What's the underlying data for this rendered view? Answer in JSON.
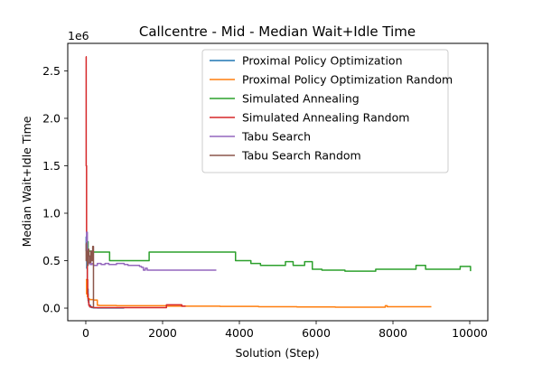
{
  "chart_data": {
    "type": "line",
    "title": "Callcentre - Mid - Median Wait+Idle Time",
    "xlabel": "Solution (Step)",
    "ylabel": "Median Wait+Idle Time",
    "y_offset_text": "1e6",
    "xlim": [
      -470,
      10470
    ],
    "ylim": [
      -133000,
      2790000
    ],
    "x_ticks": [
      0,
      2000,
      4000,
      6000,
      8000,
      10000
    ],
    "x_tick_labels": [
      "0",
      "2000",
      "4000",
      "6000",
      "8000",
      "10000"
    ],
    "y_ticks": [
      0,
      500000,
      1000000,
      1500000,
      2000000,
      2500000
    ],
    "y_tick_labels": [
      "0.0",
      "0.5",
      "1.0",
      "1.5",
      "2.0",
      "2.5"
    ],
    "grid": false,
    "legend_position": "top-right",
    "series": [
      {
        "name": "Proximal Policy Optimization",
        "color": "#1f77b4",
        "x": [
          0,
          10,
          25,
          40,
          60,
          80,
          120,
          160,
          200,
          300,
          500,
          800,
          1000
        ],
        "y": [
          600000,
          750000,
          420000,
          200000,
          80000,
          30000,
          10000,
          5000,
          3000,
          2000,
          1500,
          1000,
          1000
        ]
      },
      {
        "name": "Proximal Policy Optimization Random",
        "color": "#ff7f0e",
        "x": [
          0,
          20,
          40,
          60,
          80,
          100,
          150,
          200,
          250,
          300,
          350,
          800,
          1300,
          2100,
          2500,
          3500,
          4500,
          5500,
          6500,
          7800,
          7850,
          8200,
          9000
        ],
        "y": [
          300000,
          150000,
          120000,
          100000,
          95000,
          90000,
          90000,
          85000,
          85000,
          30000,
          28000,
          25000,
          25000,
          20000,
          20000,
          18000,
          15000,
          12000,
          10000,
          25000,
          15000,
          15000,
          15000
        ]
      },
      {
        "name": "Simulated Annealing",
        "color": "#2ca02c",
        "x": [
          0,
          60,
          100,
          150,
          600,
          620,
          1600,
          1650,
          3850,
          3900,
          4250,
          4300,
          4500,
          4550,
          5150,
          5200,
          5350,
          5400,
          5650,
          5700,
          5850,
          5900,
          6100,
          6150,
          6700,
          6750,
          7500,
          7550,
          8550,
          8600,
          8800,
          8850,
          9700,
          9750,
          10000,
          10020
        ],
        "y": [
          700000,
          600000,
          600000,
          590000,
          590000,
          500000,
          500000,
          590000,
          590000,
          500000,
          500000,
          470000,
          470000,
          450000,
          450000,
          490000,
          490000,
          450000,
          450000,
          490000,
          490000,
          410000,
          410000,
          400000,
          400000,
          390000,
          390000,
          410000,
          410000,
          450000,
          450000,
          410000,
          410000,
          440000,
          440000,
          390000
        ]
      },
      {
        "name": "Simulated Annealing Random",
        "color": "#d62728",
        "x": [
          0,
          1,
          10,
          20,
          30,
          40,
          50,
          60,
          70,
          80,
          100,
          150,
          200,
          600,
          1000,
          2000,
          2100,
          2400,
          2500,
          2600
        ],
        "y": [
          2650000,
          2650000,
          1500000,
          800000,
          500000,
          300000,
          150000,
          100000,
          60000,
          30000,
          15000,
          10000,
          5000,
          5000,
          5000,
          5000,
          35000,
          35000,
          20000,
          20000
        ]
      },
      {
        "name": "Tabu Search",
        "color": "#9467bd",
        "x": [
          0,
          20,
          40,
          60,
          80,
          120,
          160,
          200,
          300,
          400,
          500,
          600,
          700,
          800,
          1000,
          1100,
          1300,
          1400,
          1450,
          1500,
          1550,
          1600,
          2000,
          2500,
          3000,
          3400
        ],
        "y": [
          700000,
          800000,
          550000,
          480000,
          470000,
          460000,
          470000,
          450000,
          470000,
          460000,
          470000,
          460000,
          460000,
          470000,
          460000,
          450000,
          450000,
          440000,
          430000,
          400000,
          420000,
          400000,
          400000,
          400000,
          400000,
          400000
        ]
      },
      {
        "name": "Tabu Search Random",
        "color": "#8c564b",
        "x": [
          0,
          10,
          20,
          30,
          40,
          60,
          80,
          100,
          130,
          160,
          180,
          200
        ],
        "y": [
          680000,
          500000,
          600000,
          550000,
          450000,
          620000,
          550000,
          480000,
          600000,
          500000,
          650000,
          0
        ]
      }
    ]
  }
}
